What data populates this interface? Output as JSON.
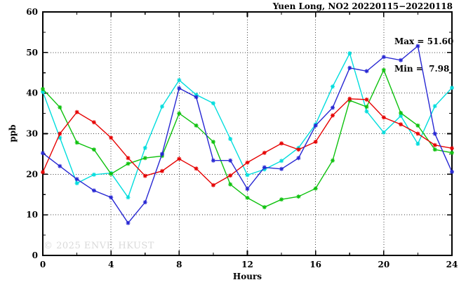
{
  "watermark": "© 2025 ENVF, HKUST",
  "annotation": {
    "max": "Max = 51.60",
    "min": "Min =  7.98"
  },
  "chart_data": {
    "type": "line",
    "title": "Yuen Long, NO2 20220115−20220118",
    "xlabel": "Hours",
    "ylabel": "ppb",
    "xlim": [
      0,
      24
    ],
    "ylim": [
      0,
      60
    ],
    "x_ticks": [
      0,
      4,
      8,
      12,
      16,
      20,
      24
    ],
    "x_minor_ticks": [
      2,
      6,
      10,
      14,
      18,
      22
    ],
    "y_ticks": [
      0,
      10,
      20,
      30,
      40,
      50,
      60
    ],
    "y_minor_ticks": [
      5,
      15,
      25,
      35,
      45,
      55
    ],
    "grid": "dotted-at-major-ticks",
    "legend": "none",
    "stats": {
      "max": 51.6,
      "min": 7.98
    },
    "x": [
      0,
      1,
      2,
      3,
      4,
      5,
      6,
      7,
      8,
      9,
      10,
      11,
      12,
      13,
      14,
      15,
      16,
      17,
      18,
      19,
      20,
      21,
      22,
      23,
      24
    ],
    "series": [
      {
        "name": "cyan",
        "color": "#00dddd",
        "values": [
          40.3,
          29.0,
          17.8,
          19.9,
          20.3,
          14.3,
          26.5,
          36.7,
          43.2,
          39.6,
          37.5,
          28.7,
          19.8,
          21.2,
          23.3,
          26.5,
          32.3,
          41.6,
          49.8,
          35.5,
          30.3,
          34.4,
          27.5,
          36.8,
          41.3
        ]
      },
      {
        "name": "green",
        "color": "#0ec20e",
        "values": [
          41.0,
          36.5,
          27.8,
          26.1,
          20.1,
          22.6,
          24.0,
          24.5,
          35.0,
          32.0,
          28.0,
          17.5,
          14.2,
          11.9,
          13.8,
          14.5,
          16.5,
          23.4,
          38.2,
          36.6,
          45.7,
          35.1,
          32.0,
          26.1,
          25.3
        ]
      },
      {
        "name": "red",
        "color": "#e60000",
        "values": [
          20.5,
          30.0,
          35.3,
          32.8,
          29.0,
          24.0,
          19.6,
          20.8,
          23.8,
          21.4,
          17.3,
          19.7,
          22.9,
          25.3,
          27.6,
          26.1,
          28.0,
          34.5,
          38.6,
          38.4,
          34.0,
          32.3,
          30.0,
          27.2,
          26.4
        ]
      },
      {
        "name": "blue",
        "color": "#2727d3",
        "values": [
          25.2,
          22.0,
          18.8,
          16.0,
          14.3,
          7.98,
          13.1,
          25.0,
          41.2,
          39.0,
          23.4,
          23.4,
          16.4,
          21.7,
          21.3,
          24.0,
          32.0,
          36.4,
          46.2,
          45.4,
          48.9,
          48.1,
          51.6,
          30.0,
          20.6
        ]
      }
    ]
  }
}
